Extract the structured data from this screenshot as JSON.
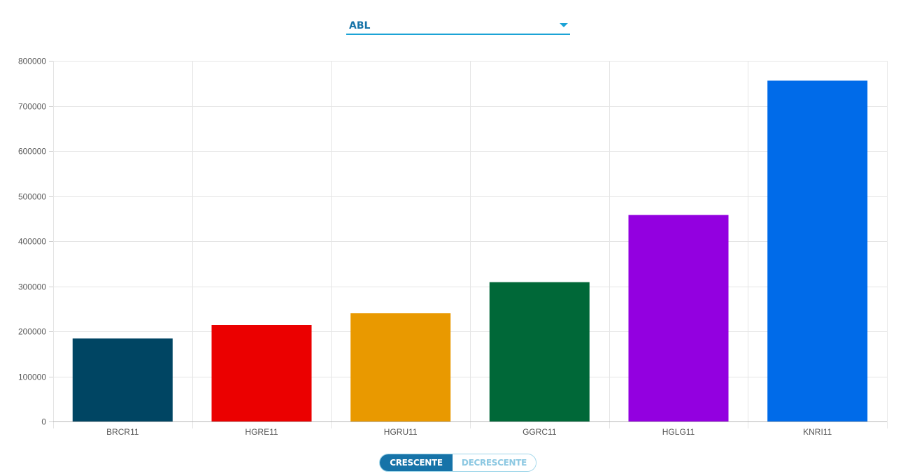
{
  "selector": {
    "value": "ABL"
  },
  "sort_toggle": {
    "ascending_label": "CRESCENTE",
    "descending_label": "DECRESCENTE",
    "active": "ascending"
  },
  "colors": {
    "accent": "#1ba3d6",
    "accent_dark": "#1673a8"
  },
  "chart_data": {
    "type": "bar",
    "title": "",
    "xlabel": "",
    "ylabel": "",
    "ylim": [
      0,
      800000
    ],
    "yticks": [
      0,
      100000,
      200000,
      300000,
      400000,
      500000,
      600000,
      700000,
      800000
    ],
    "grid": true,
    "categories": [
      "BRCR11",
      "HGRE11",
      "HGRU11",
      "GGRC11",
      "HGLG11",
      "KNRI11"
    ],
    "values": [
      184000,
      214000,
      240000,
      309000,
      458000,
      756000
    ],
    "bar_colors": [
      "#004563",
      "#eb0000",
      "#e99900",
      "#006838",
      "#9300e0",
      "#006be9"
    ]
  }
}
